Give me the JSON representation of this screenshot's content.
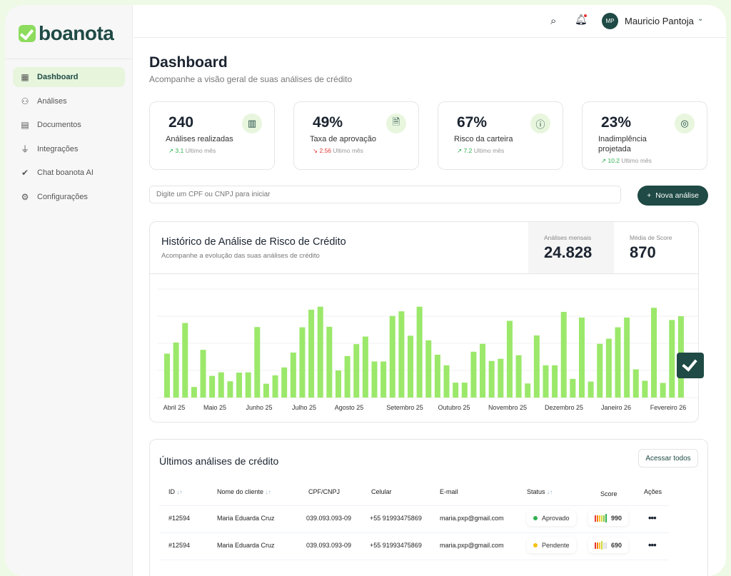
{
  "brand": {
    "name": "boanota",
    "accent": "#8ddc5d",
    "primary": "#1f4a45"
  },
  "sidebar": {
    "items": [
      {
        "label": "Dashboard",
        "icon": "grid-icon",
        "active": true
      },
      {
        "label": "Análises",
        "icon": "users-icon"
      },
      {
        "label": "Documentos",
        "icon": "document-icon"
      },
      {
        "label": "Integrações",
        "icon": "plug-icon"
      },
      {
        "label": "Chat boanota AI",
        "icon": "boanota-check-icon"
      },
      {
        "label": "Configurações",
        "icon": "gear-icon"
      }
    ]
  },
  "header": {
    "user_initials": "MP",
    "user_name": "Mauricio Pantoja",
    "notification_dot": true
  },
  "page": {
    "title": "Dashboard",
    "subtitle": "Acompanhe a visão geral de suas análises de crédito"
  },
  "stats": [
    {
      "value": "240",
      "label": "Análises realizadas",
      "delta": "3.1",
      "trend": "up",
      "period": "Ultimo mês",
      "icon": "bar-chart-icon"
    },
    {
      "value": "49%",
      "label": "Taxa de aprovação",
      "delta": "2.56",
      "trend": "down",
      "period": "Ultimo mês",
      "icon": "file-chart-icon"
    },
    {
      "value": "67%",
      "label": "Risco da carteira",
      "delta": "7.2",
      "trend": "up",
      "period": "Ultimo mês",
      "icon": "alert-circle-icon"
    },
    {
      "value": "23%",
      "label": "Inadimplência projetada",
      "delta": "10.2",
      "trend": "up",
      "period": "Ultimo mês",
      "icon": "radar-icon"
    }
  ],
  "search": {
    "placeholder": "Digite um CPF ou CNPJ para iniciar"
  },
  "new_button": "Nova análise",
  "chart_panel": {
    "title": "Histórico de Análise de Risco de Crédito",
    "subtitle": "Acompanhe a evolução das suas análises de crédito",
    "kpis": [
      {
        "label": "Análises mensais",
        "value": "24.828"
      },
      {
        "label": "Média de Score",
        "value": "870"
      }
    ]
  },
  "chart_data": {
    "type": "bar",
    "title": "",
    "xlabel": "",
    "ylabel": "",
    "grid": true,
    "ylim": [
      0,
      4
    ],
    "bar_color": "#9be86a",
    "tick_labels": [
      "Abril 25",
      "Maio 25",
      "Junho 25",
      "Julho 25",
      "Agosto 25",
      "Setembro 25",
      "Outubro 25",
      "Novembro 25",
      "Dezembro 25",
      "Janeiro 26",
      "Fevereiro 26"
    ],
    "values": [
      1.62,
      2.03,
      2.75,
      0.39,
      1.76,
      0.8,
      0.93,
      0.6,
      0.92,
      0.93,
      2.6,
      0.51,
      0.82,
      1.11,
      1.66,
      2.59,
      3.24,
      3.35,
      2.61,
      1.0,
      1.53,
      1.97,
      2.25,
      1.33,
      1.33,
      3.01,
      3.18,
      2.28,
      3.35,
      2.11,
      1.58,
      1.19,
      0.55,
      0.55,
      1.69,
      1.98,
      1.35,
      1.43,
      2.83,
      1.56,
      0.52,
      2.29,
      1.19,
      1.19,
      3.16,
      0.69,
      2.95,
      0.59,
      1.98,
      2.17,
      2.59,
      2.95,
      1.04,
      0.62,
      3.31,
      0.54,
      2.86,
      3.0
    ]
  },
  "table": {
    "title": "Últimos análises de crédito",
    "view_all": "Acessar todos",
    "columns": [
      "ID",
      "Nome do cliente",
      "CPF/CNPJ",
      "Celular",
      "E-mail",
      "Status",
      "Score",
      "Ações"
    ],
    "rows": [
      {
        "id": "#12594",
        "name": "Maria Eduarda Cruz",
        "doc": "039.093.093-09",
        "phone": "+55 91993475869",
        "email": "maria.pxp@gmail.com",
        "status": "Aprovado",
        "status_color": "#2fb04f",
        "score": "990"
      },
      {
        "id": "#12594",
        "name": "Maria Eduarda Cruz",
        "doc": "039.093.093-09",
        "phone": "+55 91993475869",
        "email": "maria.pxp@gmail.com",
        "status": "Pendente",
        "status_color": "#f5c211",
        "score": "690"
      }
    ]
  }
}
